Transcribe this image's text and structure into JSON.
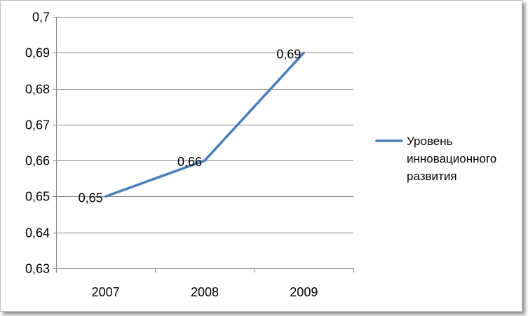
{
  "chart_data": {
    "type": "line",
    "categories": [
      "2007",
      "2008",
      "2009"
    ],
    "series": [
      {
        "name": "Уровень инновационного развития",
        "values": [
          0.65,
          0.66,
          0.69
        ],
        "data_labels": [
          "0,65",
          "0,66",
          "0,69"
        ],
        "color": "#4a7ebb"
      }
    ],
    "ylim": [
      0.63,
      0.7
    ],
    "y_ticks": [
      0.63,
      0.64,
      0.65,
      0.66,
      0.67,
      0.68,
      0.69,
      0.7
    ],
    "y_tick_labels": [
      "0,63",
      "0,64",
      "0,65",
      "0,66",
      "0,67",
      "0,68",
      "0,69",
      "0,7"
    ],
    "grid": true,
    "legend_position": "right",
    "legend_lines": [
      "Уровень",
      "инновационного",
      "развития"
    ],
    "gridline_color": "#868686",
    "axis_color": "#868686"
  }
}
